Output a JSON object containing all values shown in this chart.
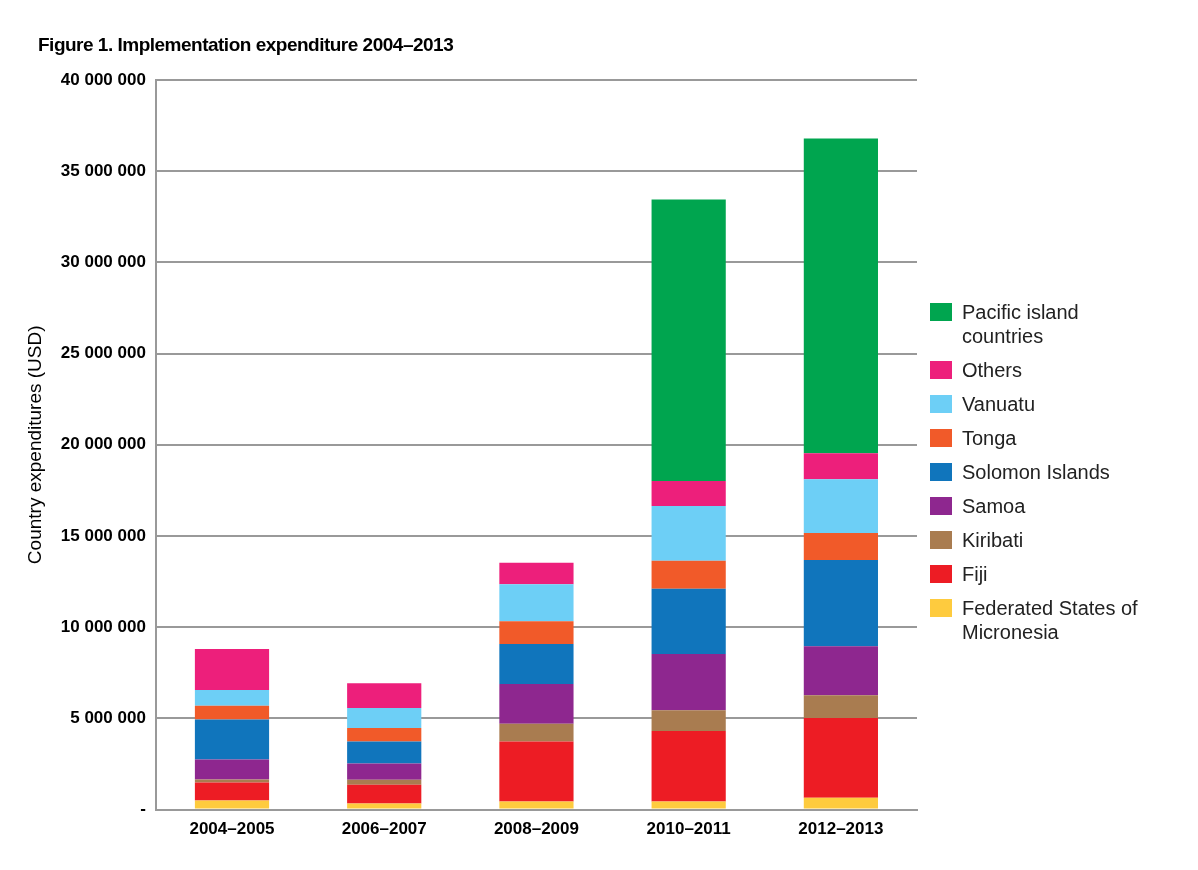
{
  "chart_data": {
    "type": "bar",
    "title": "Figure 1. Implementation expenditure 2004–2013",
    "ylabel": "Country expenditures (USD)",
    "categories": [
      "2004–2005",
      "2006–2007",
      "2008–2009",
      "2010–2011",
      "2012–2013"
    ],
    "stacked": true,
    "series": [
      {
        "name": "Federated States of Micronesia",
        "color": "#fecb3e",
        "values": [
          500000,
          330000,
          440000,
          440000,
          650000
        ]
      },
      {
        "name": "Fiji",
        "color": "#ed1c24",
        "values": [
          980000,
          1030000,
          3290000,
          3870000,
          4370000
        ]
      },
      {
        "name": "Kiribati",
        "color": "#a97c50",
        "values": [
          170000,
          280000,
          980000,
          1140000,
          1250000
        ]
      },
      {
        "name": "Samoa",
        "color": "#8e278f",
        "values": [
          1100000,
          890000,
          2180000,
          3080000,
          2690000
        ]
      },
      {
        "name": "Solomon Islands",
        "color": "#1075bc",
        "values": [
          2190000,
          1200000,
          2190000,
          3580000,
          4730000
        ]
      },
      {
        "name": "Tonga",
        "color": "#f15a29",
        "values": [
          750000,
          750000,
          1250000,
          1530000,
          1470000
        ]
      },
      {
        "name": "Vanuatu",
        "color": "#6dcff6",
        "values": [
          870000,
          1090000,
          2020000,
          3000000,
          2950000
        ]
      },
      {
        "name": "Others",
        "color": "#ed1f7b",
        "values": [
          2240000,
          1360000,
          1180000,
          1380000,
          1420000
        ]
      },
      {
        "name": "Pacific island countries",
        "color": "#00a54f",
        "values": [
          null,
          null,
          null,
          15430000,
          17260000
        ]
      }
    ],
    "ylim": [
      0,
      40000000
    ],
    "yticks": [
      {
        "value": 0,
        "label": "-"
      },
      {
        "value": 5000000,
        "label": "5 000 000"
      },
      {
        "value": 10000000,
        "label": "10 000 000"
      },
      {
        "value": 15000000,
        "label": "15 000 000"
      },
      {
        "value": 20000000,
        "label": "20 000 000"
      },
      {
        "value": 25000000,
        "label": "25 000 000"
      },
      {
        "value": 30000000,
        "label": "30 000 000"
      },
      {
        "value": 35000000,
        "label": "35 000 000"
      },
      {
        "value": 40000000,
        "label": "40 000 000"
      }
    ],
    "grid": "y",
    "legend": "right"
  }
}
